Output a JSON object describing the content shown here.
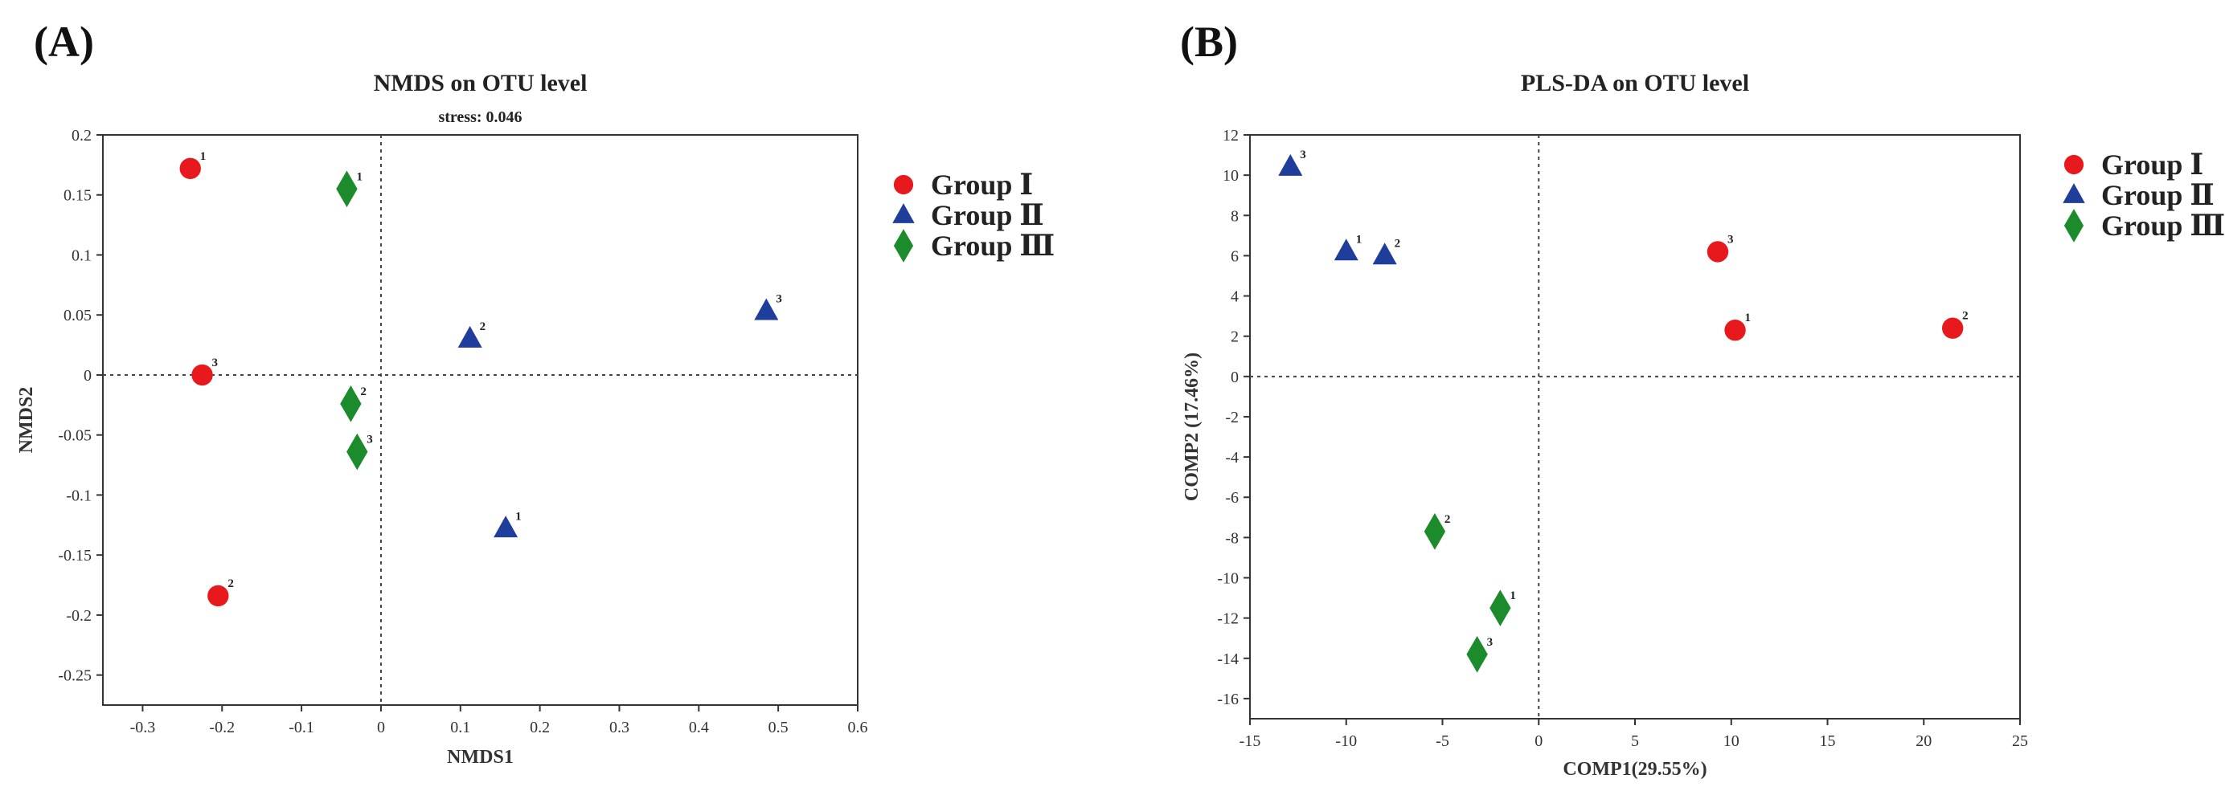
{
  "chart_data": [
    {
      "panel_label": "(A)",
      "type": "scatter",
      "title": "NMDS on OTU level",
      "subtitle": "stress: 0.046",
      "xlabel": "NMDS1",
      "ylabel": "NMDS2",
      "xlim": [
        -0.35,
        0.6
      ],
      "ylim": [
        -0.275,
        0.2
      ],
      "xticks": [
        -0.3,
        -0.2,
        -0.1,
        0,
        0.1,
        0.2,
        0.3,
        0.4,
        0.5,
        0.6
      ],
      "xtick_labels": [
        "-0.3",
        "-0.2",
        "-0.1",
        "0",
        "0.1",
        "0.2",
        "0.3",
        "0.4",
        "0.5",
        "0.6"
      ],
      "yticks": [
        0.2,
        0.15,
        0.1,
        0.05,
        0,
        -0.05,
        -0.1,
        -0.15,
        -0.2,
        -0.25
      ],
      "ytick_labels": [
        "0.2",
        "0.15",
        "0.1",
        "0.05",
        "0",
        "-0.05",
        "-0.1",
        "-0.15",
        "-0.2",
        "-0.25"
      ],
      "reference_lines": {
        "x": 0,
        "y": 0
      },
      "legend_position": "right",
      "series": [
        {
          "name": "Group Ⅰ",
          "marker": "circle",
          "color": "#e8191c",
          "points": [
            {
              "x": -0.24,
              "y": 0.172,
              "label": "1"
            },
            {
              "x": -0.205,
              "y": -0.184,
              "label": "2"
            },
            {
              "x": -0.225,
              "y": 0.0,
              "label": "3"
            }
          ]
        },
        {
          "name": "Group Ⅱ",
          "marker": "triangle",
          "color": "#1f3e9b",
          "points": [
            {
              "x": 0.157,
              "y": -0.128,
              "label": "1"
            },
            {
              "x": 0.112,
              "y": 0.03,
              "label": "2"
            },
            {
              "x": 0.485,
              "y": 0.053,
              "label": "3"
            }
          ]
        },
        {
          "name": "Group Ⅲ",
          "marker": "diamond",
          "color": "#1c8b2c",
          "points": [
            {
              "x": -0.043,
              "y": 0.155,
              "label": "1"
            },
            {
              "x": -0.038,
              "y": -0.024,
              "label": "2"
            },
            {
              "x": -0.03,
              "y": -0.064,
              "label": "3"
            }
          ]
        }
      ]
    },
    {
      "panel_label": "(B)",
      "type": "scatter",
      "title": "PLS-DA on OTU level",
      "subtitle": "",
      "xlabel": "COMP1(29.55%)",
      "ylabel": "COMP2 (17.46%)",
      "xlim": [
        -15,
        25
      ],
      "ylim": [
        -17,
        12
      ],
      "xticks": [
        -15,
        -10,
        -5,
        0,
        5,
        10,
        15,
        20,
        25
      ],
      "xtick_labels": [
        "-15",
        "-10",
        "-5",
        "0",
        "5",
        "10",
        "15",
        "20",
        "25"
      ],
      "yticks": [
        12,
        10,
        8,
        6,
        4,
        2,
        0,
        -2,
        -4,
        -6,
        -8,
        -10,
        -12,
        -14,
        -16
      ],
      "ytick_labels": [
        "12",
        "10",
        "8",
        "6",
        "4",
        "2",
        "0",
        "-2",
        "-4",
        "-6",
        "-8",
        "-10",
        "-12",
        "-14",
        "-16"
      ],
      "reference_lines": {
        "x": 0,
        "y": 0
      },
      "legend_position": "right",
      "series": [
        {
          "name": "Group Ⅰ",
          "marker": "circle",
          "color": "#e8191c",
          "points": [
            {
              "x": 10.2,
              "y": 2.3,
              "label": "1"
            },
            {
              "x": 21.5,
              "y": 2.4,
              "label": "2"
            },
            {
              "x": 9.3,
              "y": 6.2,
              "label": "3"
            }
          ]
        },
        {
          "name": "Group Ⅱ",
          "marker": "triangle",
          "color": "#1f3e9b",
          "points": [
            {
              "x": -10.0,
              "y": 6.2,
              "label": "1"
            },
            {
              "x": -8.0,
              "y": 6.0,
              "label": "2"
            },
            {
              "x": -12.9,
              "y": 10.4,
              "label": "3"
            }
          ]
        },
        {
          "name": "Group Ⅲ",
          "marker": "diamond",
          "color": "#1c8b2c",
          "points": [
            {
              "x": -2.0,
              "y": -11.5,
              "label": "1"
            },
            {
              "x": -5.4,
              "y": -7.7,
              "label": "2"
            },
            {
              "x": -3.2,
              "y": -13.8,
              "label": "3"
            }
          ]
        }
      ]
    }
  ]
}
